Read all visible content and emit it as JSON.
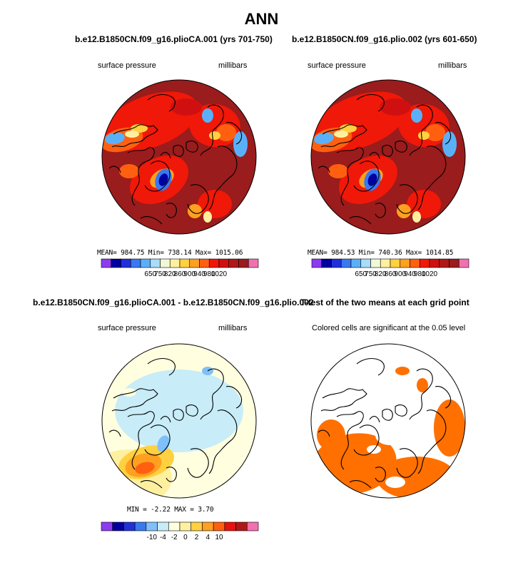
{
  "title": "ANN",
  "panels": [
    {
      "id": "case1",
      "title": "b.e12.B1850CN.f09_g16.plioCA.001 (yrs 701-750)",
      "field": "surface pressure",
      "units": "millibars",
      "stats": "MEAN= 984.75   Min= 738.14   Max= 1015.06"
    },
    {
      "id": "case2",
      "title": "b.e12.B1850CN.f09_g16.plio.002 (yrs 601-650)",
      "field": "surface pressure",
      "units": "millibars",
      "stats": "MEAN= 984.53   Min= 740.36   Max= 1014.85"
    },
    {
      "id": "diff",
      "title": "b.e12.B1850CN.f09_g16.plioCA.001 - b.e12.B1850CN.f09_g16.plio.002",
      "field": "surface pressure",
      "units": "millibars",
      "stats": "MIN =   -2.22  MAX =   3.70"
    },
    {
      "id": "ttest",
      "title": "T-test of the two means at each grid point",
      "field": "Colored cells are significant at the 0.05 level"
    }
  ],
  "chart_data": [
    {
      "type": "heatmap",
      "title": "b.e12.B1850CN.f09_g16.plioCA.001 (yrs 701-750)",
      "variable": "surface pressure",
      "units": "millibars",
      "projection": "north polar stereographic",
      "mean": 984.75,
      "min": 738.14,
      "max": 1015.06,
      "colorbar_ticks": [
        "650",
        "750",
        "820",
        "860",
        "900",
        "940",
        "980",
        "1020"
      ],
      "colorbar_colors": [
        "#8c3cf0",
        "#0000a0",
        "#2030d8",
        "#3a78f0",
        "#5ab0f8",
        "#a8dcf8",
        "#f0f8d8",
        "#fff0a0",
        "#ffd040",
        "#ffa020",
        "#ff6010",
        "#f01808",
        "#d01010",
        "#b01818",
        "#9a1c1c",
        "#f070b0"
      ]
    },
    {
      "type": "heatmap",
      "title": "b.e12.B1850CN.f09_g16.plio.002 (yrs 601-650)",
      "variable": "surface pressure",
      "units": "millibars",
      "projection": "north polar stereographic",
      "mean": 984.53,
      "min": 740.36,
      "max": 1014.85,
      "colorbar_ticks": [
        "650",
        "750",
        "820",
        "860",
        "900",
        "940",
        "980",
        "1020"
      ],
      "colorbar_colors": [
        "#8c3cf0",
        "#0000a0",
        "#2030d8",
        "#3a78f0",
        "#5ab0f8",
        "#a8dcf8",
        "#f0f8d8",
        "#fff0a0",
        "#ffd040",
        "#ffa020",
        "#ff6010",
        "#f01808",
        "#d01010",
        "#b01818",
        "#9a1c1c",
        "#f070b0"
      ]
    },
    {
      "type": "heatmap",
      "title": "b.e12.B1850CN.f09_g16.plioCA.001 - b.e12.B1850CN.f09_g16.plio.002",
      "variable": "surface pressure",
      "units": "millibars",
      "projection": "north polar stereographic",
      "min": -2.22,
      "max": 3.7,
      "colorbar_ticks": [
        "-10",
        "-4",
        "-2",
        "0",
        "2",
        "4",
        "10"
      ],
      "colorbar_colors": [
        "#8c3cf0",
        "#0000a0",
        "#2030d8",
        "#3a78f0",
        "#80c0f8",
        "#c8ecf8",
        "#ffffe0",
        "#fff0a0",
        "#ffd040",
        "#ffa020",
        "#ff6010",
        "#e81010",
        "#b01818",
        "#f070b0"
      ]
    },
    {
      "type": "heatmap",
      "title": "T-test of the two means at each grid point",
      "subtitle": "Colored cells are significant at the 0.05 level",
      "projection": "north polar stereographic",
      "significant_color": "#ff7000"
    }
  ]
}
